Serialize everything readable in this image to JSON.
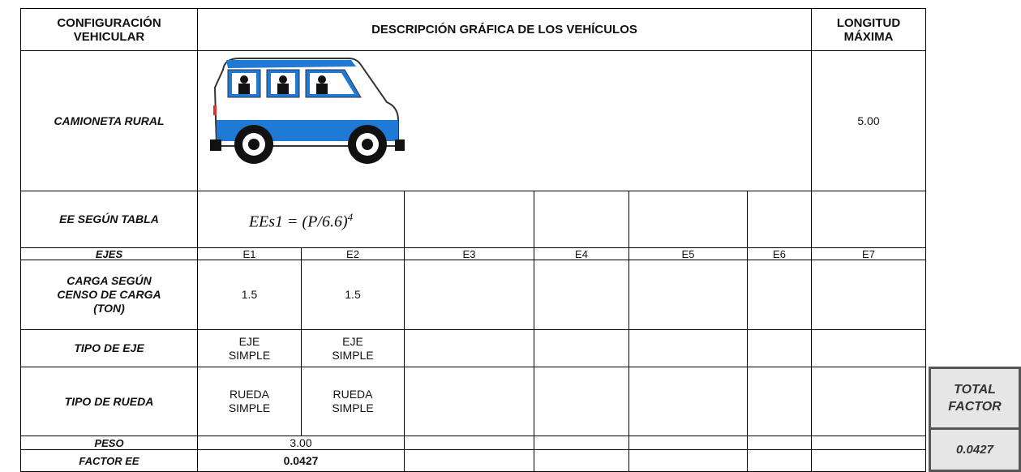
{
  "table": {
    "headers": {
      "config": [
        "CONFIGURACIÓN",
        "VEHICULAR"
      ],
      "description": "DESCRIPCIÓN GRÁFICA DE LOS VEHÍCULOS",
      "length": [
        "LONGITUD",
        "MÁXIMA"
      ]
    },
    "vehicle": "CAMIONETA RURAL",
    "max_length": "5.00",
    "ee_label": "EE SEGÚN TABLA",
    "formula": {
      "base": "EEs1 = (P/6.6)",
      "exponent": "4"
    },
    "axles_label": "EJES",
    "axles": [
      "E1",
      "E2",
      "E3",
      "E4",
      "E5",
      "E6",
      "E7"
    ],
    "load_label": [
      "CARGA SEGÚN",
      "CENSO DE CARGA",
      "(TON)"
    ],
    "loads": [
      "1.5",
      "1.5"
    ],
    "axle_type_label": "TIPO DE EJE",
    "axle_types": [
      [
        "EJE",
        "SIMPLE"
      ],
      [
        "EJE",
        "SIMPLE"
      ]
    ],
    "wheel_type_label": "TIPO DE RUEDA",
    "wheel_types": [
      [
        "RUEDA",
        "SIMPLE"
      ],
      [
        "RUEDA",
        "SIMPLE"
      ]
    ],
    "weight_label": "PESO",
    "weight": "3.00",
    "factor_label": "FACTOR EE",
    "factor": "0.0427"
  },
  "total": {
    "label": [
      "TOTAL",
      "FACTOR"
    ],
    "value": "0.0427"
  }
}
